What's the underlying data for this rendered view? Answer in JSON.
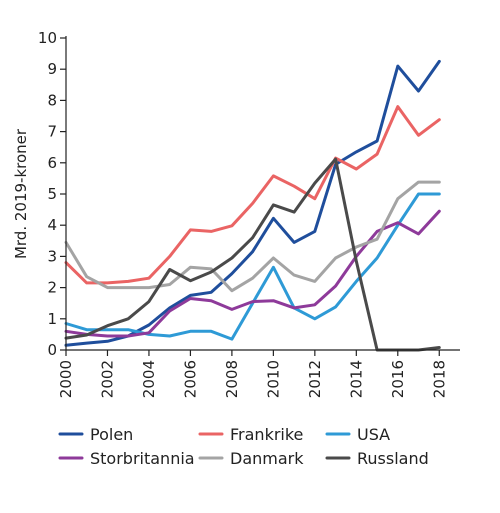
{
  "chart_data": {
    "type": "line",
    "title": "",
    "xlabel": "",
    "ylabel": "Mrd. 2019-kroner",
    "xlim": [
      2000,
      2019
    ],
    "ylim": [
      0,
      10
    ],
    "x_ticks": [
      2000,
      2002,
      2004,
      2006,
      2008,
      2010,
      2012,
      2014,
      2016,
      2018
    ],
    "y_ticks": [
      0,
      1,
      2,
      3,
      4,
      5,
      6,
      7,
      8,
      9,
      10
    ],
    "grid": false,
    "legend_position": "bottom",
    "x": [
      2000,
      2001,
      2002,
      2003,
      2004,
      2005,
      2006,
      2007,
      2008,
      2009,
      2010,
      2011,
      2012,
      2013,
      2014,
      2015,
      2016,
      2017,
      2018,
      2019
    ],
    "series": [
      {
        "name": "Polen",
        "color": "#1f4e9c",
        "values": [
          0.15,
          0.22,
          0.28,
          0.45,
          0.8,
          1.35,
          1.75,
          1.85,
          2.45,
          3.15,
          4.22,
          3.45,
          3.8,
          5.95,
          6.35,
          6.7,
          9.1,
          8.3,
          9.25,
          null
        ]
      },
      {
        "name": "Frankrike",
        "color": "#ea6464",
        "values": [
          2.8,
          2.15,
          2.15,
          2.2,
          2.3,
          3.0,
          3.85,
          3.8,
          3.98,
          4.7,
          5.58,
          5.25,
          4.85,
          6.15,
          5.8,
          6.28,
          7.8,
          6.88,
          7.38,
          null
        ]
      },
      {
        "name": "USA",
        "color": "#2e9ad6",
        "values": [
          0.85,
          0.65,
          0.65,
          0.65,
          0.5,
          0.45,
          0.6,
          0.6,
          0.35,
          1.5,
          2.65,
          1.35,
          1.0,
          1.38,
          2.2,
          2.95,
          4.0,
          5.0,
          5.0,
          null
        ]
      },
      {
        "name": "Storbritannia",
        "color": "#8e3a9a",
        "values": [
          0.6,
          0.5,
          0.45,
          0.45,
          0.55,
          1.25,
          1.65,
          1.58,
          1.3,
          1.55,
          1.58,
          1.35,
          1.45,
          2.05,
          3.0,
          3.8,
          4.08,
          3.72,
          4.45,
          null
        ]
      },
      {
        "name": "Danmark",
        "color": "#a4a4a4",
        "values": [
          3.45,
          2.35,
          2.0,
          2.0,
          2.0,
          2.1,
          2.65,
          2.6,
          1.9,
          2.3,
          2.95,
          2.4,
          2.2,
          2.95,
          3.3,
          3.55,
          4.85,
          5.38,
          5.38,
          null
        ]
      },
      {
        "name": "Russland",
        "color": "#4a4a4a",
        "values": [
          0.38,
          0.48,
          0.78,
          1.0,
          1.55,
          2.58,
          2.22,
          2.5,
          2.95,
          3.6,
          4.65,
          4.42,
          5.35,
          6.12,
          2.85,
          0.0,
          0.0,
          0.0,
          0.08,
          null
        ]
      }
    ]
  }
}
